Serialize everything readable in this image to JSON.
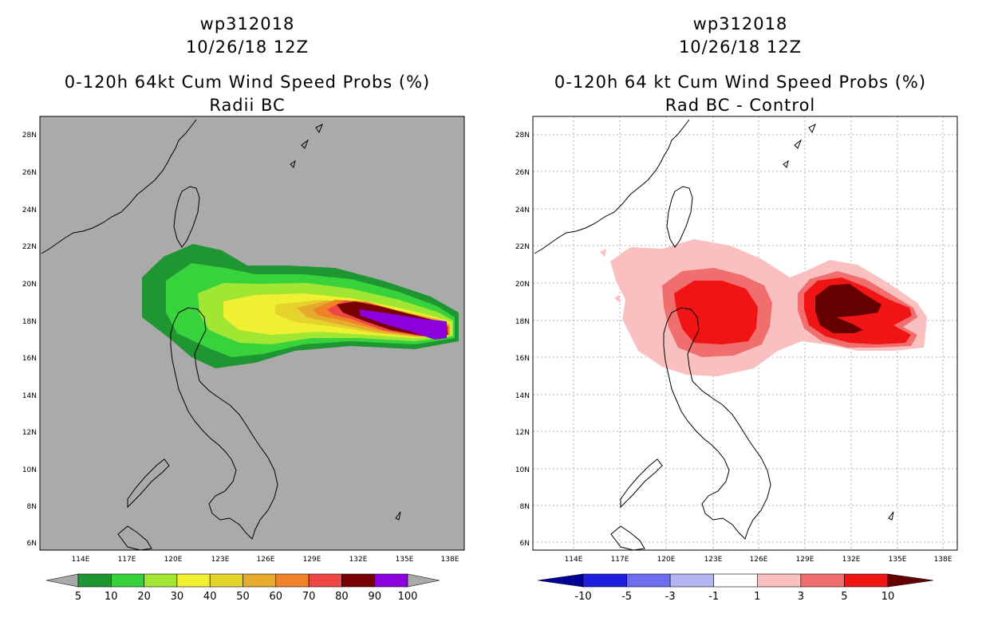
{
  "left": {
    "title_line1": "wp312018",
    "title_line2": "10/26/18 12Z",
    "title_line3": "0-120h 64kt Cum Wind Speed Probs (%)",
    "title_line4": "Radii BC",
    "colorbar": {
      "labels": [
        "5",
        "10",
        "20",
        "30",
        "40",
        "50",
        "60",
        "70",
        "80",
        "90",
        "100"
      ],
      "colors": [
        "#1e9632",
        "#37d23c",
        "#a0e632",
        "#f0f032",
        "#e6d22d",
        "#e6aa2d",
        "#f08228",
        "#f04646",
        "#780000",
        "#8c00dc"
      ],
      "under_color": "#a9a9a9",
      "over_color": "#a9a9a9"
    },
    "background_color": "#aaaaaa"
  },
  "right": {
    "title_line1": "wp312018",
    "title_line2": "10/26/18 12Z",
    "title_line3": "0-120h 64 kt Cum Wind Speed Probs (%)",
    "title_line4": "Rad BC - Control",
    "colorbar": {
      "labels": [
        "-10",
        "-5",
        "-3",
        "-1",
        "1",
        "3",
        "5",
        "10"
      ],
      "colors": [
        "#1e1edc",
        "#6e6ef0",
        "#b4b4f0",
        "#ffffff",
        "#fac0c0",
        "#f06e6e",
        "#f01414"
      ],
      "under_color": "#000096",
      "over_color": "#640000"
    },
    "background_color": "#ffffff"
  },
  "axes": {
    "lat_labels": [
      "28N",
      "26N",
      "24N",
      "22N",
      "20N",
      "18N",
      "16N",
      "14N",
      "12N",
      "10N",
      "8N",
      "6N"
    ],
    "lon_labels": [
      "114E",
      "117E",
      "120E",
      "123E",
      "126E",
      "129E",
      "132E",
      "135E",
      "138E"
    ]
  }
}
